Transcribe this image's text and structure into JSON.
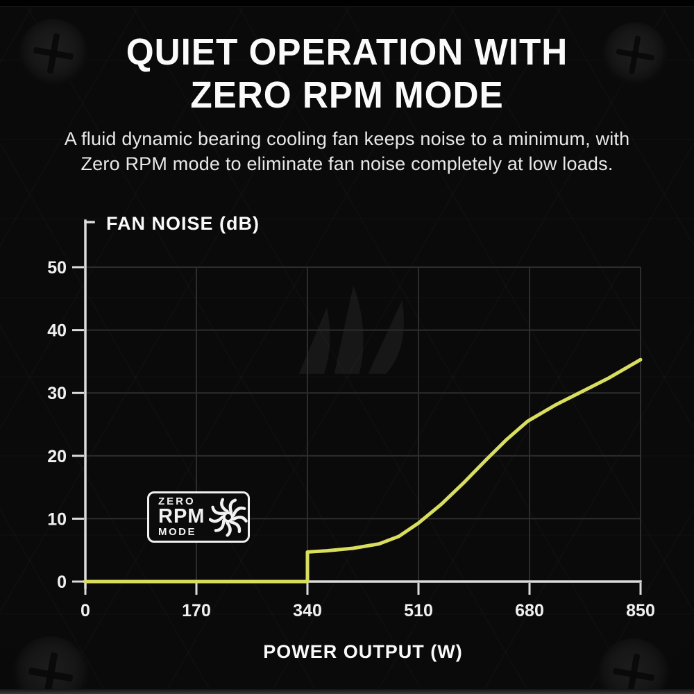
{
  "header": {
    "title_line1": "QUIET OPERATION WITH",
    "title_line2": "ZERO RPM MODE",
    "subtitle_line1": "A fluid dynamic bearing cooling fan keeps noise to a minimum, with",
    "subtitle_line2": "Zero RPM mode to eliminate fan noise completely at low loads."
  },
  "zero_rpm_badge": {
    "word1": "ZERO",
    "word2": "RPM",
    "word3": "MODE",
    "icon": "fan-icon"
  },
  "chart_data": {
    "type": "line",
    "title": "",
    "y_axis_label": "FAN NOISE (dB)",
    "x_axis_label": "POWER OUTPUT (W)",
    "x_ticks": [
      0,
      170,
      340,
      510,
      680,
      850
    ],
    "y_ticks": [
      0,
      10,
      20,
      30,
      40,
      50
    ],
    "xlim": [
      0,
      850
    ],
    "ylim": [
      0,
      50
    ],
    "grid": true,
    "legend_position": "none",
    "series": [
      {
        "name": "Fan noise (dB) vs power output (W)",
        "color": "#dade5e",
        "x": [
          0,
          340,
          340,
          370,
          410,
          450,
          480,
          510,
          545,
          580,
          613,
          645,
          677,
          720,
          760,
          800,
          850
        ],
        "y": [
          0,
          0,
          4.7,
          4.9,
          5.3,
          6.0,
          7.2,
          9.3,
          12.3,
          15.8,
          19.3,
          22.6,
          25.5,
          28.1,
          30.2,
          32.3,
          35.3
        ]
      }
    ],
    "annotations": [
      {
        "label": "ZERO RPM MODE",
        "x": 180,
        "y": 10
      }
    ]
  },
  "colors": {
    "background": "#0a0a0a",
    "curve": "#dade5e",
    "axis": "#dcdcdc",
    "grid": "#2d2d2d",
    "title_text": "#fafafa",
    "subtitle_text": "#e8e8e8"
  }
}
